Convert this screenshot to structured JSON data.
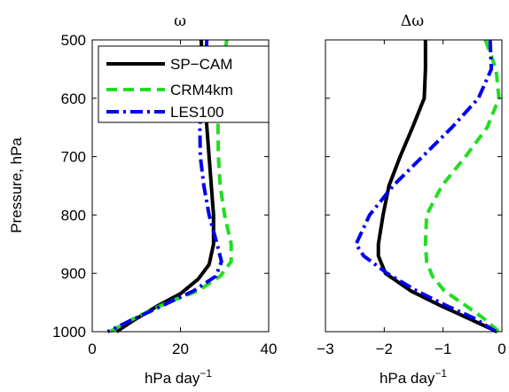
{
  "chart_data": [
    {
      "type": "line",
      "title": "ω",
      "xlabel": "hPa day",
      "xlabel_superscript": "−1",
      "ylabel": "Pressure, hPa",
      "xlim": [
        0,
        40
      ],
      "ylim": [
        1000,
        500
      ],
      "xticks": [
        "0",
        "20",
        "40"
      ],
      "yticks": [
        "500",
        "600",
        "700",
        "800",
        "900",
        "1000"
      ],
      "y_reversed": true,
      "legend": {
        "placement": "top-left",
        "entries": [
          "SP−CAM",
          "CRM4km",
          "LES100"
        ]
      },
      "series": [
        {
          "name": "SP−CAM",
          "color": "#000000",
          "style": "solid",
          "x": [
            24.7,
            25,
            25.5,
            26,
            26.5,
            27,
            27.5,
            27.5,
            26.5,
            24,
            20,
            15,
            9.5,
            5.5
          ],
          "y": [
            500,
            550,
            600,
            650,
            700,
            750,
            800,
            850,
            885,
            910,
            935,
            955,
            980,
            1000
          ]
        },
        {
          "name": "CRM4km",
          "color": "#22dd22",
          "style": "dashed",
          "x": [
            30.5,
            29.5,
            28.7,
            28.5,
            28.6,
            29,
            30,
            31.5,
            31.5,
            29,
            24,
            17,
            10,
            4
          ],
          "y": [
            500,
            550,
            600,
            650,
            700,
            750,
            800,
            850,
            880,
            905,
            930,
            950,
            975,
            1000
          ]
        },
        {
          "name": "LES100",
          "color": "#0000ee",
          "style": "dashdot",
          "x": [
            26,
            25.5,
            24.8,
            24.4,
            24.5,
            25.3,
            26.5,
            28.3,
            29.3,
            28,
            23,
            16,
            9.5,
            3.5
          ],
          "y": [
            500,
            550,
            600,
            650,
            700,
            750,
            800,
            850,
            880,
            905,
            930,
            955,
            978,
            1000
          ]
        }
      ]
    },
    {
      "type": "line",
      "title": "Δω",
      "xlabel": "hPa day",
      "xlabel_superscript": "−1",
      "ylabel": "",
      "xlim": [
        -3,
        0
      ],
      "ylim": [
        1000,
        500
      ],
      "xticks": [
        "−3",
        "−2",
        "−1",
        "0"
      ],
      "yticks": [],
      "y_reversed": true,
      "series": [
        {
          "name": "SP−CAM",
          "color": "#000000",
          "style": "solid",
          "x": [
            -1.3,
            -1.3,
            -1.32,
            -1.52,
            -1.73,
            -1.92,
            -2.02,
            -2.1,
            -2.1,
            -1.98,
            -1.55,
            -1.05,
            -0.55,
            -0.08
          ],
          "y": [
            500,
            550,
            600,
            650,
            700,
            750,
            800,
            850,
            870,
            900,
            930,
            955,
            978,
            1000
          ]
        },
        {
          "name": "CRM4km",
          "color": "#22dd22",
          "style": "dashed",
          "x": [
            -0.28,
            -0.1,
            -0.05,
            -0.25,
            -0.62,
            -1.02,
            -1.28,
            -1.3,
            -1.28,
            -1.18,
            -0.98,
            -0.62,
            -0.3,
            -0.05
          ],
          "y": [
            500,
            550,
            600,
            650,
            700,
            750,
            800,
            850,
            880,
            905,
            930,
            955,
            978,
            1000
          ]
        },
        {
          "name": "LES100",
          "color": "#0000ee",
          "style": "dashdot",
          "x": [
            -0.2,
            -0.18,
            -0.4,
            -0.85,
            -1.35,
            -1.85,
            -2.25,
            -2.48,
            -2.35,
            -1.95,
            -1.45,
            -0.95,
            -0.45,
            -0.1
          ],
          "y": [
            500,
            550,
            600,
            650,
            700,
            750,
            800,
            850,
            870,
            900,
            930,
            955,
            978,
            1000
          ]
        }
      ]
    }
  ]
}
